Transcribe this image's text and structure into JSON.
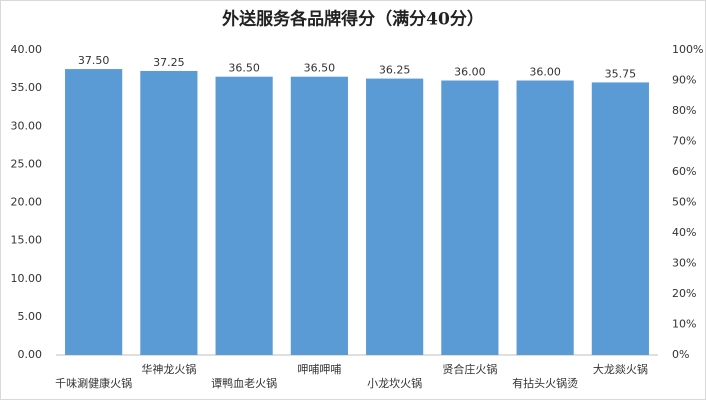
{
  "chart_data": {
    "type": "bar",
    "title": "外送服务各品牌得分（满分40分）",
    "categories": [
      "千味涮健康火锅",
      "华神龙火锅",
      "谭鸭血老火锅",
      "呷哺呷哺",
      "小龙坎火锅",
      "贤合庄火锅",
      "有拈头火锅烫",
      "大龙燚火锅"
    ],
    "values": [
      37.5,
      37.25,
      36.5,
      36.5,
      36.25,
      36.0,
      36.0,
      35.75
    ],
    "value_labels": [
      "37.50",
      "37.25",
      "36.50",
      "36.50",
      "36.25",
      "36.00",
      "36.00",
      "35.75"
    ],
    "color": "#5b9bd5",
    "ylim": [
      0,
      40
    ],
    "yticks": [
      {
        "value": 0,
        "label": "0.00"
      },
      {
        "value": 5,
        "label": "5.00"
      },
      {
        "value": 10,
        "label": "10.00"
      },
      {
        "value": 15,
        "label": "15.00"
      },
      {
        "value": 20,
        "label": "20.00"
      },
      {
        "value": 25,
        "label": "25.00"
      },
      {
        "value": 30,
        "label": "30.00"
      },
      {
        "value": 35,
        "label": "35.00"
      },
      {
        "value": 40,
        "label": "40.00"
      }
    ],
    "y2lim": [
      0,
      100
    ],
    "y2ticks": [
      {
        "value": 0,
        "label": "0%"
      },
      {
        "value": 10,
        "label": "10%"
      },
      {
        "value": 20,
        "label": "20%"
      },
      {
        "value": 30,
        "label": "30%"
      },
      {
        "value": 40,
        "label": "40%"
      },
      {
        "value": 50,
        "label": "50%"
      },
      {
        "value": 60,
        "label": "60%"
      },
      {
        "value": 70,
        "label": "70%"
      },
      {
        "value": 80,
        "label": "80%"
      },
      {
        "value": 90,
        "label": "90%"
      },
      {
        "value": 100,
        "label": "100%"
      }
    ]
  }
}
